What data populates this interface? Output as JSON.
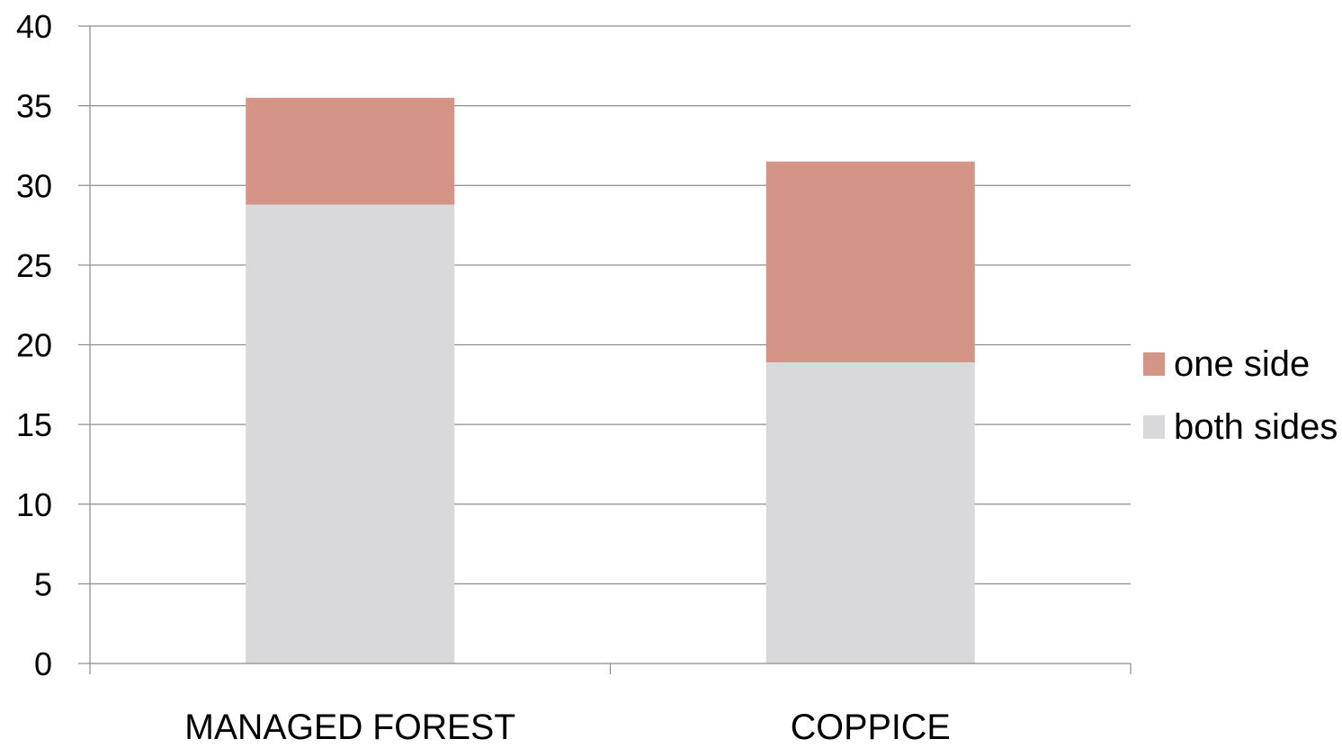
{
  "chart_data": {
    "type": "bar",
    "stacked": true,
    "categories": [
      "MANAGED FOREST",
      "COPPICE"
    ],
    "series": [
      {
        "name": "both sides",
        "values": [
          28.8,
          18.9
        ],
        "color": "#d9d9db"
      },
      {
        "name": "one side",
        "values": [
          6.7,
          12.6
        ],
        "color": "#d49586"
      }
    ],
    "ylim": [
      0,
      40
    ],
    "yticks": [
      0,
      5,
      10,
      15,
      20,
      25,
      30,
      35,
      40
    ],
    "ytick_labels": [
      "0",
      "5",
      "10",
      "15",
      "20",
      "25",
      "30",
      "35",
      "40"
    ],
    "grid": true,
    "legend": {
      "placement": "right",
      "order": [
        "one side",
        "both sides"
      ]
    },
    "title": "",
    "xlabel": "",
    "ylabel": ""
  }
}
